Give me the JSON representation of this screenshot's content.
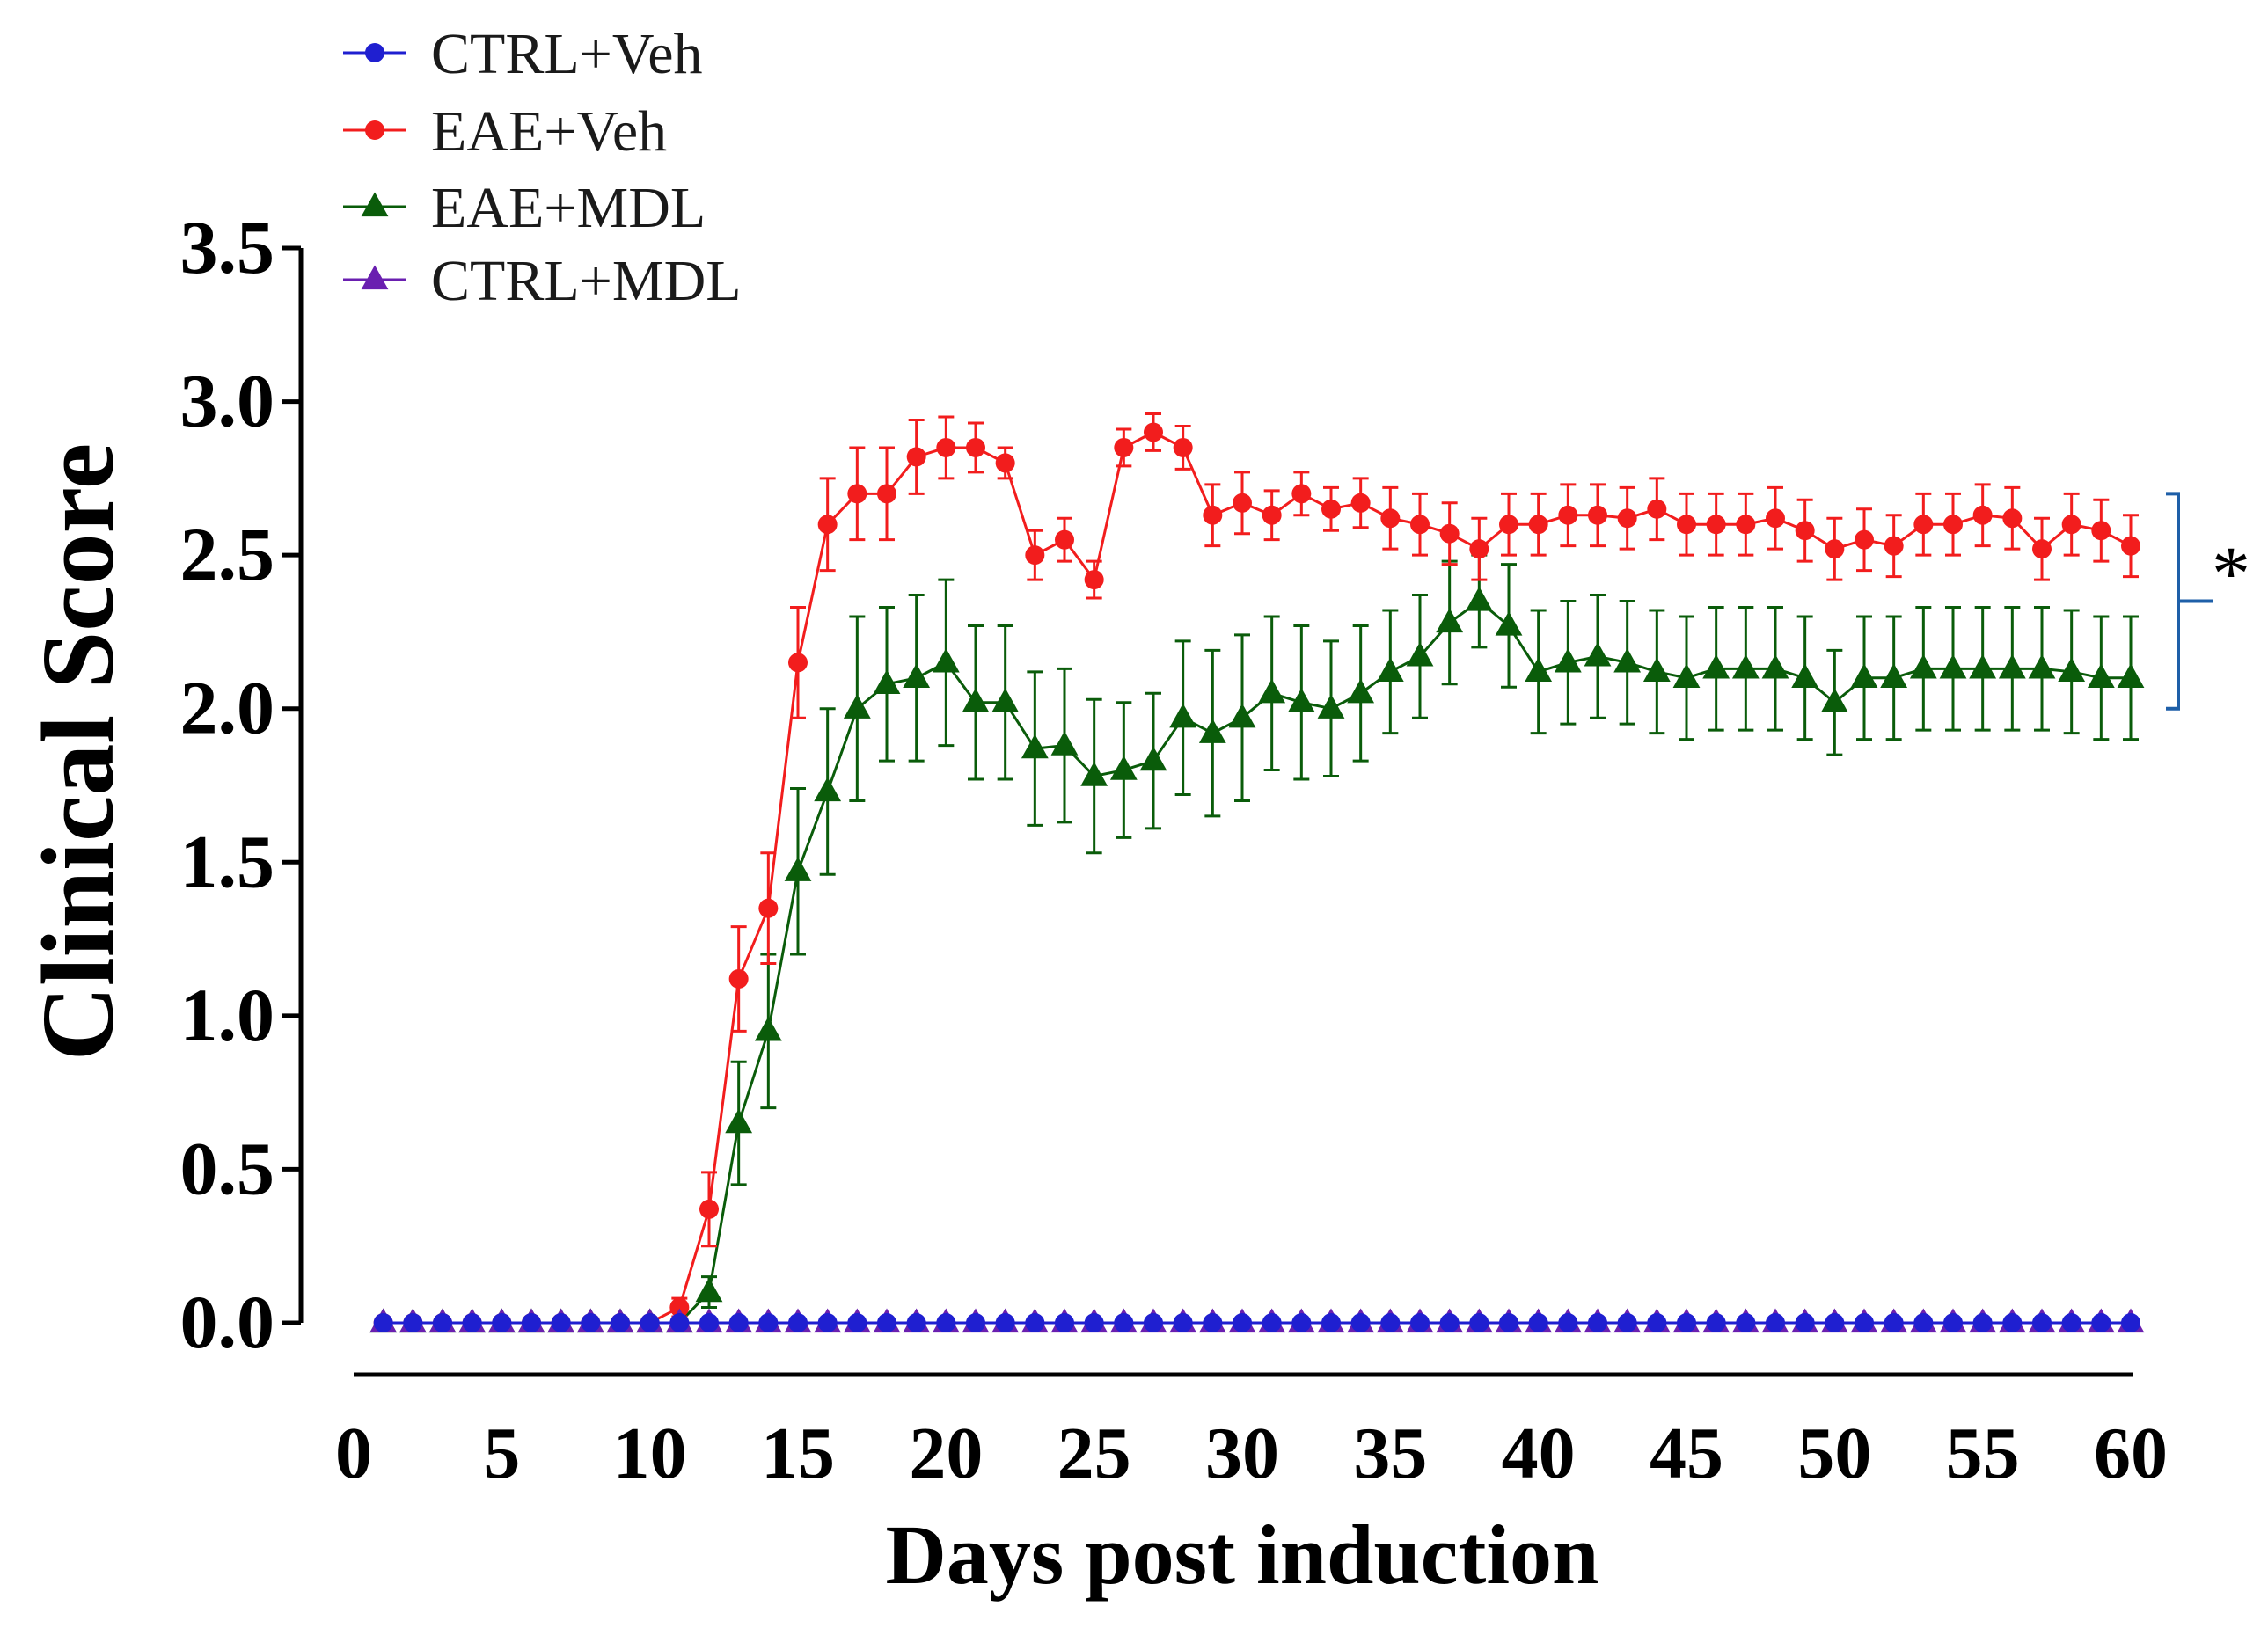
{
  "chart_data": {
    "type": "line",
    "title": "",
    "xlabel": "Days post induction",
    "ylabel": "Clinical Score",
    "xlim": [
      0,
      60
    ],
    "ylim": [
      0,
      3.5
    ],
    "xticks": [
      0,
      5,
      10,
      15,
      20,
      25,
      30,
      35,
      40,
      45,
      50,
      55,
      60
    ],
    "yticks": [
      0.0,
      0.5,
      1.0,
      1.5,
      2.0,
      2.5,
      3.0,
      3.5
    ],
    "ytick_labels": [
      "0.0",
      "0.5",
      "1.0",
      "1.5",
      "2.0",
      "2.5",
      "3.0",
      "3.5"
    ],
    "grid": false,
    "legend_position": "top-left",
    "annotation": {
      "text": "*",
      "between": [
        "EAE+Veh",
        "EAE+MDL"
      ],
      "y_range": [
        2.0,
        2.7
      ]
    },
    "series": [
      {
        "name": "CTRL+Veh",
        "color": "#1f1fd0",
        "marker": "circle",
        "x": [
          1,
          2,
          3,
          4,
          5,
          6,
          7,
          8,
          9,
          10,
          11,
          12,
          13,
          14,
          15,
          16,
          17,
          18,
          19,
          20,
          21,
          22,
          23,
          24,
          25,
          26,
          27,
          28,
          29,
          30,
          31,
          32,
          33,
          34,
          35,
          36,
          37,
          38,
          39,
          40,
          41,
          42,
          43,
          44,
          45,
          46,
          47,
          48,
          49,
          50,
          51,
          52,
          53,
          54,
          55,
          56,
          57,
          58,
          59,
          60
        ],
        "values": [
          0,
          0,
          0,
          0,
          0,
          0,
          0,
          0,
          0,
          0,
          0,
          0,
          0,
          0,
          0,
          0,
          0,
          0,
          0,
          0,
          0,
          0,
          0,
          0,
          0,
          0,
          0,
          0,
          0,
          0,
          0,
          0,
          0,
          0,
          0,
          0,
          0,
          0,
          0,
          0,
          0,
          0,
          0,
          0,
          0,
          0,
          0,
          0,
          0,
          0,
          0,
          0,
          0,
          0,
          0,
          0,
          0,
          0,
          0,
          0
        ],
        "errors": []
      },
      {
        "name": "EAE+Veh",
        "color": "#f21d1d",
        "marker": "circle",
        "x": [
          1,
          2,
          3,
          4,
          5,
          6,
          7,
          8,
          9,
          10,
          11,
          12,
          13,
          14,
          15,
          16,
          17,
          18,
          19,
          20,
          21,
          22,
          23,
          24,
          25,
          26,
          27,
          28,
          29,
          30,
          31,
          32,
          33,
          34,
          35,
          36,
          37,
          38,
          39,
          40,
          41,
          42,
          43,
          44,
          45,
          46,
          47,
          48,
          49,
          50,
          51,
          52,
          53,
          54,
          55,
          56,
          57,
          58,
          59,
          60
        ],
        "values": [
          0,
          0,
          0,
          0,
          0,
          0,
          0,
          0,
          0,
          0,
          0.05,
          0.37,
          1.12,
          1.35,
          2.15,
          2.6,
          2.7,
          2.7,
          2.82,
          2.85,
          2.85,
          2.8,
          2.5,
          2.55,
          2.42,
          2.85,
          2.9,
          2.85,
          2.63,
          2.67,
          2.63,
          2.7,
          2.65,
          2.67,
          2.62,
          2.6,
          2.57,
          2.52,
          2.6,
          2.6,
          2.63,
          2.63,
          2.62,
          2.65,
          2.6,
          2.6,
          2.6,
          2.62,
          2.58,
          2.52,
          2.55,
          2.53,
          2.6,
          2.6,
          2.63,
          2.62,
          2.52,
          2.6,
          2.58,
          2.53
        ],
        "errors": [
          0,
          0,
          0,
          0,
          0,
          0,
          0,
          0,
          0,
          0,
          0.03,
          0.12,
          0.17,
          0.18,
          0.18,
          0.15,
          0.15,
          0.15,
          0.12,
          0.1,
          0.08,
          0.05,
          0.08,
          0.07,
          0.06,
          0.06,
          0.06,
          0.07,
          0.1,
          0.1,
          0.08,
          0.07,
          0.07,
          0.08,
          0.1,
          0.1,
          0.1,
          0.1,
          0.1,
          0.1,
          0.1,
          0.1,
          0.1,
          0.1,
          0.1,
          0.1,
          0.1,
          0.1,
          0.1,
          0.1,
          0.1,
          0.1,
          0.1,
          0.1,
          0.1,
          0.1,
          0.1,
          0.1,
          0.1,
          0.1
        ]
      },
      {
        "name": "EAE+MDL",
        "color": "#0a5c0a",
        "marker": "triangle",
        "x": [
          1,
          2,
          3,
          4,
          5,
          6,
          7,
          8,
          9,
          10,
          11,
          12,
          13,
          14,
          15,
          16,
          17,
          18,
          19,
          20,
          21,
          22,
          23,
          24,
          25,
          26,
          27,
          28,
          29,
          30,
          31,
          32,
          33,
          34,
          35,
          36,
          37,
          38,
          39,
          40,
          41,
          42,
          43,
          44,
          45,
          46,
          47,
          48,
          49,
          50,
          51,
          52,
          53,
          54,
          55,
          56,
          57,
          58,
          59,
          60
        ],
        "values": [
          0,
          0,
          0,
          0,
          0,
          0,
          0,
          0,
          0,
          0,
          0,
          0.1,
          0.65,
          0.95,
          1.47,
          1.73,
          2.0,
          2.08,
          2.1,
          2.15,
          2.02,
          2.02,
          1.87,
          1.88,
          1.78,
          1.8,
          1.83,
          1.97,
          1.92,
          1.97,
          2.05,
          2.02,
          2.0,
          2.05,
          2.12,
          2.17,
          2.28,
          2.35,
          2.27,
          2.12,
          2.15,
          2.17,
          2.15,
          2.12,
          2.1,
          2.13,
          2.13,
          2.13,
          2.1,
          2.02,
          2.1,
          2.1,
          2.13,
          2.13,
          2.13,
          2.13,
          2.13,
          2.12,
          2.1,
          2.1
        ],
        "errors": [
          0,
          0,
          0,
          0,
          0,
          0,
          0,
          0,
          0,
          0,
          0,
          0.05,
          0.2,
          0.25,
          0.27,
          0.27,
          0.3,
          0.25,
          0.27,
          0.27,
          0.25,
          0.25,
          0.25,
          0.25,
          0.25,
          0.22,
          0.22,
          0.25,
          0.27,
          0.27,
          0.25,
          0.25,
          0.22,
          0.22,
          0.2,
          0.2,
          0.2,
          0.15,
          0.2,
          0.2,
          0.2,
          0.2,
          0.2,
          0.2,
          0.2,
          0.2,
          0.2,
          0.2,
          0.2,
          0.17,
          0.2,
          0.2,
          0.2,
          0.2,
          0.2,
          0.2,
          0.2,
          0.2,
          0.2,
          0.2
        ]
      },
      {
        "name": "CTRL+MDL",
        "color": "#6a1fb0",
        "marker": "triangle",
        "x": [
          1,
          2,
          3,
          4,
          5,
          6,
          7,
          8,
          9,
          10,
          11,
          12,
          13,
          14,
          15,
          16,
          17,
          18,
          19,
          20,
          21,
          22,
          23,
          24,
          25,
          26,
          27,
          28,
          29,
          30,
          31,
          32,
          33,
          34,
          35,
          36,
          37,
          38,
          39,
          40,
          41,
          42,
          43,
          44,
          45,
          46,
          47,
          48,
          49,
          50,
          51,
          52,
          53,
          54,
          55,
          56,
          57,
          58,
          59,
          60
        ],
        "values": [
          0,
          0,
          0,
          0,
          0,
          0,
          0,
          0,
          0,
          0,
          0,
          0,
          0,
          0,
          0,
          0,
          0,
          0,
          0,
          0,
          0,
          0,
          0,
          0,
          0,
          0,
          0,
          0,
          0,
          0,
          0,
          0,
          0,
          0,
          0,
          0,
          0,
          0,
          0,
          0,
          0,
          0,
          0,
          0,
          0,
          0,
          0,
          0,
          0,
          0,
          0,
          0,
          0,
          0,
          0,
          0,
          0,
          0,
          0,
          0
        ],
        "errors": []
      }
    ]
  }
}
